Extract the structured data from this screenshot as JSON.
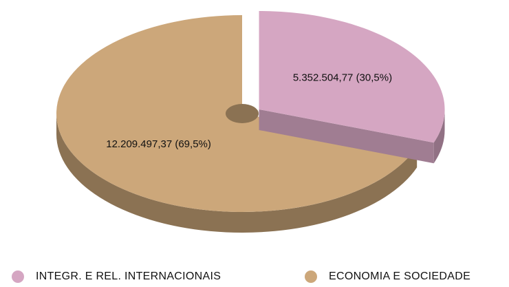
{
  "chart_data": {
    "type": "pie",
    "categories": [
      "INTEGR. E REL. INTERNACIONAIS",
      "ECONOMIA E SOCIEDADE"
    ],
    "values": [
      5352504.77,
      12209497.37
    ],
    "value_labels": [
      "5.352.504,77 (30,5%)",
      "12.209.497,37 (69,5%)"
    ],
    "colors": [
      "#d5a6c2",
      "#cca77a"
    ],
    "legend": "bottom"
  }
}
